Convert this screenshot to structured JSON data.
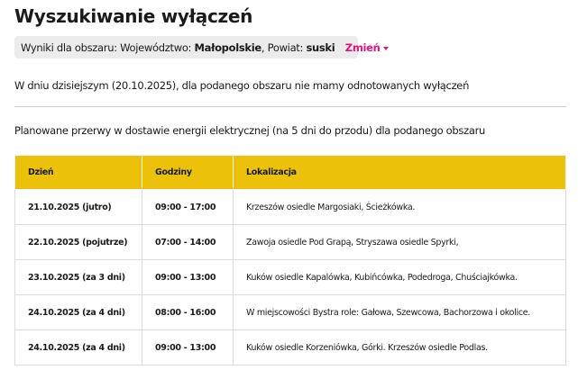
{
  "title": "Wyszukiwanie wyłączeń",
  "filter": {
    "prefix": "Wyniki dla obszaru: Województwo: ",
    "voivodeship": "Małopolskie",
    "county_label": ", Powiat: ",
    "county": "suski",
    "change_label": "Zmień"
  },
  "info": "W dniu dzisiejszym (20.10.2025), dla podanego obszaru nie mamy odnotowanych wyłączeń",
  "planned_heading": "Planowane przerwy w dostawie energii elektrycznej (na 5 dni do przodu) dla podanego obszaru",
  "accent": "#ecc109",
  "table": {
    "headers": [
      "Dzień",
      "Godziny",
      "Lokalizacja"
    ],
    "rows": [
      {
        "day": "21.10.2025 (jutro)",
        "hours": "09:00 - 17:00",
        "location": "Krzeszów osiedle Margosiaki, Ścieżkówka."
      },
      {
        "day": "22.10.2025 (pojutrze)",
        "hours": "07:00 - 14:00",
        "location": "Zawoja osiedle Pod Grapą, Stryszawa osiedle Spyrki,"
      },
      {
        "day": "23.10.2025 (za 3 dni)",
        "hours": "09:00 - 13:00",
        "location": "Kuków osiedle Kapalówka, Kubińcówka, Podedroga, Chuściajkówka."
      },
      {
        "day": "24.10.2025 (za 4 dni)",
        "hours": "08:00 - 16:00",
        "location": "W miejscowości Bystra role: Gałowa, Szewcowa, Bachorzowa i okolice."
      },
      {
        "day": "24.10.2025 (za 4 dni)",
        "hours": "09:00 - 13:00",
        "location": "Kuków osiedle Korzeniówka, Górki. Krzeszów osiedle Podlas."
      }
    ]
  }
}
